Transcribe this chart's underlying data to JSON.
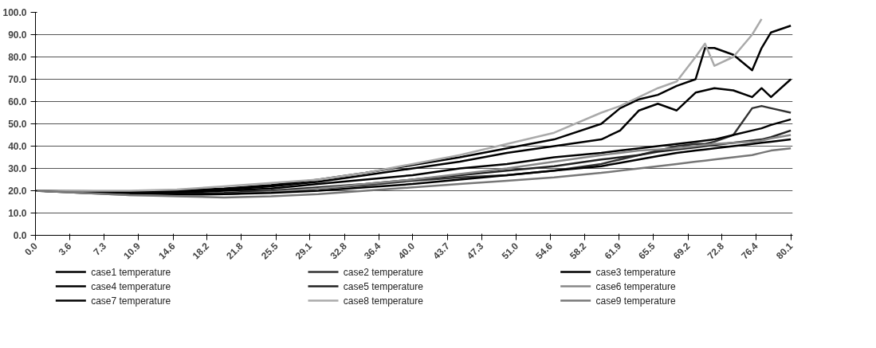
{
  "chart_data": {
    "type": "line",
    "x": [
      0,
      5,
      10,
      15,
      20,
      25,
      30,
      35,
      40,
      45,
      50,
      55,
      60,
      62,
      64,
      66,
      68,
      70,
      71,
      72,
      74,
      76,
      77,
      78,
      80.1
    ],
    "series": [
      {
        "name": "case1 temperature",
        "color": "#000000",
        "values": [
          20,
          19.8,
          19.5,
          20,
          21,
          22.5,
          25,
          28,
          31.5,
          35,
          39,
          43,
          50,
          57,
          61,
          63,
          67,
          70,
          84,
          84,
          81,
          74,
          84,
          91,
          94
        ]
      },
      {
        "name": "case2 temperature",
        "color": "#333333",
        "values": [
          20,
          19,
          18.5,
          18,
          18.5,
          19.5,
          21,
          22.5,
          24.5,
          26,
          27,
          29,
          32,
          34,
          36,
          38,
          40,
          41,
          41,
          42,
          45,
          57,
          58,
          57,
          55
        ]
      },
      {
        "name": "case3 temperature",
        "color": "#000000",
        "values": [
          20,
          19.5,
          19,
          19.5,
          20.5,
          22,
          24,
          27,
          30,
          33,
          37,
          40,
          43,
          47,
          56,
          59,
          56,
          64,
          65,
          66,
          65,
          62,
          66,
          62,
          70
        ]
      },
      {
        "name": "case4 temperature",
        "color": "#000000",
        "values": [
          20,
          19.5,
          19,
          19,
          20,
          21,
          23,
          25,
          27,
          30,
          32,
          35,
          37,
          38,
          39,
          40,
          41,
          42,
          42.5,
          43,
          45,
          47,
          48,
          49.5,
          52
        ]
      },
      {
        "name": "case5 temperature",
        "color": "#222222",
        "values": [
          20,
          19.5,
          19,
          18.5,
          19,
          20,
          21.5,
          23,
          25,
          27,
          29,
          31,
          34,
          35,
          36,
          37.5,
          38.5,
          39.5,
          40,
          40.5,
          41.5,
          42.5,
          43,
          44,
          47
        ]
      },
      {
        "name": "case6 temperature",
        "color": "#888888",
        "values": [
          20,
          19,
          18,
          18,
          18.5,
          19.5,
          21,
          23,
          25,
          27.5,
          30,
          33,
          36,
          37,
          38,
          38.5,
          39,
          40,
          40.5,
          41,
          41.5,
          42,
          42.5,
          43.5,
          45
        ]
      },
      {
        "name": "case7 temperature",
        "color": "#000000",
        "values": [
          20,
          19.5,
          19,
          18.5,
          18.5,
          19,
          20,
          21.5,
          23,
          25,
          27,
          29,
          31,
          32.5,
          34,
          35.5,
          37,
          38,
          38.5,
          39,
          40,
          41,
          41.5,
          42,
          43
        ]
      },
      {
        "name": "case8 temperature",
        "color": "#aaaaaa",
        "values": [
          20,
          20,
          20,
          20.5,
          22,
          23.5,
          25,
          28,
          32,
          36,
          41,
          46,
          55,
          58,
          62,
          66,
          69,
          80,
          86,
          76,
          80,
          90,
          97,
          null,
          null
        ]
      },
      {
        "name": "case9 temperature",
        "color": "#777777",
        "values": [
          20,
          19,
          18,
          17.5,
          17,
          17.5,
          18.5,
          20,
          21.5,
          23,
          24.5,
          26,
          28,
          29,
          30,
          31,
          32,
          33,
          33.5,
          34,
          35,
          36,
          37,
          38,
          39
        ]
      }
    ],
    "xlim": [
      0,
      80.3
    ],
    "xticks": [
      {
        "value": 0,
        "label": "0.0"
      },
      {
        "value": 3.6,
        "label": "3.6"
      },
      {
        "value": 7.3,
        "label": "7.3"
      },
      {
        "value": 10.9,
        "label": "10.9"
      },
      {
        "value": 14.6,
        "label": "14.6"
      },
      {
        "value": 18.2,
        "label": "18.2"
      },
      {
        "value": 21.8,
        "label": "21.8"
      },
      {
        "value": 25.5,
        "label": "25.5"
      },
      {
        "value": 29.1,
        "label": "29.1"
      },
      {
        "value": 32.8,
        "label": "32.8"
      },
      {
        "value": 36.4,
        "label": "36.4"
      },
      {
        "value": 40,
        "label": "40.0"
      },
      {
        "value": 43.7,
        "label": "43.7"
      },
      {
        "value": 47.3,
        "label": "47.3"
      },
      {
        "value": 51,
        "label": "51.0"
      },
      {
        "value": 54.6,
        "label": "54.6"
      },
      {
        "value": 58.2,
        "label": "58.2"
      },
      {
        "value": 61.9,
        "label": "61.9"
      },
      {
        "value": 65.5,
        "label": "65.5"
      },
      {
        "value": 69.2,
        "label": "69.2"
      },
      {
        "value": 72.8,
        "label": "72.8"
      },
      {
        "value": 76.4,
        "label": "76.4"
      },
      {
        "value": 80.1,
        "label": "80.1"
      }
    ],
    "ylim": [
      0,
      100
    ],
    "yticks": [
      {
        "value": 0,
        "label": "0.0"
      },
      {
        "value": 10,
        "label": "10.0"
      },
      {
        "value": 20,
        "label": "20.0"
      },
      {
        "value": 30,
        "label": "30.0"
      },
      {
        "value": 40,
        "label": "40.0"
      },
      {
        "value": 50,
        "label": "50.0"
      },
      {
        "value": 60,
        "label": "60.0"
      },
      {
        "value": 70,
        "label": "70.0"
      },
      {
        "value": 80,
        "label": "80.0"
      },
      {
        "value": 90,
        "label": "90.0"
      },
      {
        "value": 100,
        "label": "100.0"
      }
    ],
    "grid": "y",
    "legend": "bottom",
    "line_style": "solid"
  }
}
